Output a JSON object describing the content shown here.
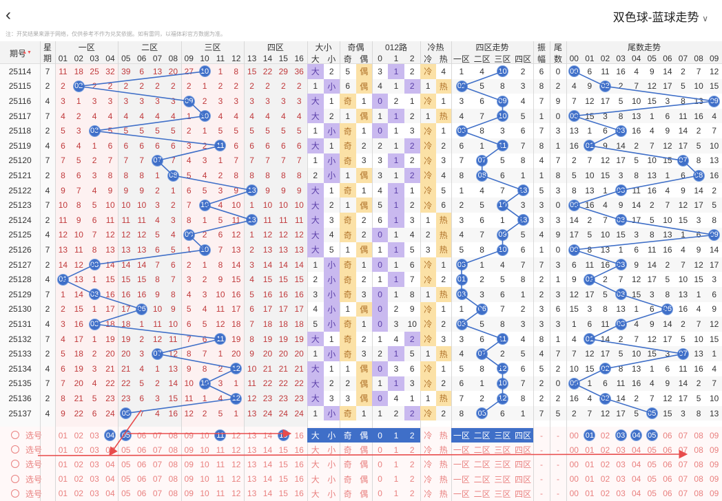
{
  "header": {
    "title": "双色球-蓝球走势"
  },
  "notice": "注：开奖结果来源于网络，仅供参考不作为兑奖依据。如有雷同，以福体彩官方数据为准。",
  "table_headers": {
    "period": "期号",
    "week": "星期",
    "zones": [
      "一区",
      "二区",
      "三区",
      "四区"
    ],
    "size": "大小",
    "parity": "奇偶",
    "route": "012路",
    "hotcold": "冷热",
    "zone_trend": "四区走势",
    "amplitude": "振幅",
    "tail_count": "尾数",
    "tail_trend": "尾数走势",
    "week_sub": "期",
    "amp_sub": "幅",
    "tail_sub": "数",
    "size_labels": [
      "大",
      "小"
    ],
    "parity_labels": [
      "奇",
      "偶"
    ],
    "route_labels": [
      "0",
      "1",
      "2"
    ],
    "hot_labels": [
      "冷",
      "热"
    ],
    "tail_digits": [
      "00",
      "01",
      "02",
      "03",
      "04",
      "05",
      "06",
      "07",
      "08",
      "09"
    ]
  },
  "draws": [
    {
      "period": "25114",
      "week": "7",
      "blue": 10,
      "size": "大",
      "parity": "偶",
      "route": 1,
      "hot": "冷",
      "amp": "6",
      "tail": "0",
      "sizeN": 2,
      "parityN": 5,
      "routeN": [
        3,
        2
      ],
      "hotN": 4
    },
    {
      "period": "25115",
      "week": "2",
      "blue": 2,
      "size": "小",
      "parity": "偶",
      "route": 2,
      "hot": "热",
      "amp": "8",
      "tail": "2",
      "sizeN": 1,
      "parityN": 6,
      "routeN": [
        4,
        1
      ],
      "hotN": 1
    },
    {
      "period": "25116",
      "week": "4",
      "blue": 9,
      "size": "大",
      "parity": "奇",
      "route": 0,
      "hot": "冷",
      "amp": "7",
      "tail": "9",
      "sizeN": 1,
      "parityN": 1,
      "routeN": [
        2,
        1
      ],
      "hotN": 1
    },
    {
      "period": "25117",
      "week": "7",
      "blue": 10,
      "size": "大",
      "parity": "偶",
      "route": 1,
      "hot": "热",
      "amp": "1",
      "tail": "0",
      "sizeN": 2,
      "parityN": 1,
      "routeN": [
        1,
        2
      ],
      "hotN": 1
    },
    {
      "period": "25118",
      "week": "2",
      "blue": 3,
      "size": "小",
      "parity": "奇",
      "route": 0,
      "hot": "冷",
      "amp": "7",
      "tail": "3",
      "sizeN": 1,
      "parityN": 1,
      "routeN": [
        1,
        3
      ],
      "hotN": 1
    },
    {
      "period": "25119",
      "week": "4",
      "blue": 11,
      "size": "大",
      "parity": "奇",
      "route": 2,
      "hot": "冷",
      "amp": "8",
      "tail": "1",
      "sizeN": 1,
      "parityN": 2,
      "routeN": [
        2,
        1
      ],
      "hotN": 2
    },
    {
      "period": "25120",
      "week": "7",
      "blue": 7,
      "size": "小",
      "parity": "奇",
      "route": 1,
      "hot": "冷",
      "amp": "4",
      "tail": "7",
      "sizeN": 1,
      "parityN": 3,
      "routeN": [
        3,
        2
      ],
      "hotN": 3
    },
    {
      "period": "25121",
      "week": "2",
      "blue": 8,
      "size": "小",
      "parity": "偶",
      "route": 2,
      "hot": "冷",
      "amp": "1",
      "tail": "8",
      "sizeN": 2,
      "parityN": 1,
      "routeN": [
        3,
        1
      ],
      "hotN": 4
    },
    {
      "period": "25122",
      "week": "4",
      "blue": 13,
      "size": "大",
      "parity": "奇",
      "route": 1,
      "hot": "冷",
      "amp": "5",
      "tail": "3",
      "sizeN": 1,
      "parityN": 1,
      "routeN": [
        4,
        1
      ],
      "hotN": 5
    },
    {
      "period": "25123",
      "week": "7",
      "blue": 10,
      "size": "大",
      "parity": "偶",
      "route": 1,
      "hot": "冷",
      "amp": "3",
      "tail": "0",
      "sizeN": 2,
      "parityN": 1,
      "routeN": [
        5,
        2
      ],
      "hotN": 6
    },
    {
      "period": "25124",
      "week": "2",
      "blue": 13,
      "size": "大",
      "parity": "奇",
      "route": 1,
      "hot": "热",
      "amp": "3",
      "tail": "3",
      "sizeN": 3,
      "parityN": 2,
      "routeN": [
        6,
        3
      ],
      "hotN": 1
    },
    {
      "period": "25125",
      "week": "4",
      "blue": 9,
      "size": "大",
      "parity": "奇",
      "route": 0,
      "hot": "热",
      "amp": "4",
      "tail": "9",
      "sizeN": 4,
      "parityN": 2,
      "routeN": [
        1,
        4
      ],
      "hotN": 2
    },
    {
      "period": "25126",
      "week": "7",
      "blue": 10,
      "size": "大",
      "parity": "偶",
      "route": 1,
      "hot": "热",
      "amp": "1",
      "tail": "0",
      "sizeN": 5,
      "parityN": 1,
      "routeN": [
        1,
        5
      ],
      "hotN": 3
    },
    {
      "period": "25127",
      "week": "2",
      "blue": 3,
      "size": "小",
      "parity": "奇",
      "route": 0,
      "hot": "冷",
      "amp": "7",
      "tail": "3",
      "sizeN": 1,
      "parityN": 1,
      "routeN": [
        1,
        6
      ],
      "hotN": 1
    },
    {
      "period": "25128",
      "week": "4",
      "blue": 1,
      "size": "小",
      "parity": "奇",
      "route": 1,
      "hot": "冷",
      "amp": "2",
      "tail": "1",
      "sizeN": 2,
      "parityN": 2,
      "routeN": [
        1,
        7
      ],
      "hotN": 2
    },
    {
      "period": "25129",
      "week": "7",
      "blue": 3,
      "size": "小",
      "parity": "奇",
      "route": 0,
      "hot": "热",
      "amp": "2",
      "tail": "3",
      "sizeN": 3,
      "parityN": 3,
      "routeN": [
        1,
        8
      ],
      "hotN": 1
    },
    {
      "period": "25130",
      "week": "2",
      "blue": 6,
      "size": "小",
      "parity": "偶",
      "route": 0,
      "hot": "冷",
      "amp": "3",
      "tail": "6",
      "sizeN": 4,
      "parityN": 1,
      "routeN": [
        2,
        9
      ],
      "hotN": 1
    },
    {
      "period": "25131",
      "week": "4",
      "blue": 3,
      "size": "小",
      "parity": "奇",
      "route": 0,
      "hot": "冷",
      "amp": "3",
      "tail": "3",
      "sizeN": 5,
      "parityN": 1,
      "routeN": [
        3,
        10
      ],
      "hotN": 2
    },
    {
      "period": "25132",
      "week": "7",
      "blue": 11,
      "size": "大",
      "parity": "奇",
      "route": 2,
      "hot": "冷",
      "amp": "8",
      "tail": "1",
      "sizeN": 1,
      "parityN": 2,
      "routeN": [
        1,
        4
      ],
      "hotN": 3
    },
    {
      "period": "25133",
      "week": "2",
      "blue": 7,
      "size": "小",
      "parity": "奇",
      "route": 1,
      "hot": "热",
      "amp": "4",
      "tail": "7",
      "sizeN": 1,
      "parityN": 3,
      "routeN": [
        2,
        5
      ],
      "hotN": 1
    },
    {
      "period": "25134",
      "week": "4",
      "blue": 12,
      "size": "大",
      "parity": "偶",
      "route": 0,
      "hot": "冷",
      "amp": "5",
      "tail": "2",
      "sizeN": 1,
      "parityN": 1,
      "routeN": [
        3,
        6
      ],
      "hotN": 1
    },
    {
      "period": "25135",
      "week": "7",
      "blue": 10,
      "size": "大",
      "parity": "偶",
      "route": 1,
      "hot": "冷",
      "amp": "2",
      "tail": "0",
      "sizeN": 2,
      "parityN": 2,
      "routeN": [
        1,
        3
      ],
      "hotN": 2
    },
    {
      "period": "25136",
      "week": "2",
      "blue": 12,
      "size": "大",
      "parity": "偶",
      "route": 0,
      "hot": "热",
      "amp": "2",
      "tail": "2",
      "sizeN": 3,
      "parityN": 3,
      "routeN": [
        4,
        1
      ],
      "hotN": 1
    },
    {
      "period": "25137",
      "week": "4",
      "blue": 5,
      "size": "小",
      "parity": "奇",
      "route": 2,
      "hot": "冷",
      "amp": "7",
      "tail": "5",
      "sizeN": 1,
      "parityN": 1,
      "routeN": [
        1,
        2
      ],
      "hotN": 2
    }
  ],
  "bottom": {
    "pick_label": "选号",
    "number_labels": [
      "01",
      "02",
      "03",
      "04",
      "05",
      "06",
      "07",
      "08",
      "09",
      "10",
      "11",
      "12",
      "13",
      "14",
      "15",
      "16"
    ],
    "selected_blue": [
      4,
      5,
      11,
      15
    ],
    "selected_tail": [
      1,
      3,
      4,
      5
    ],
    "zone_labels": [
      "一区",
      "二区",
      "三区",
      "四区"
    ],
    "dash": "-"
  },
  "colors": {
    "ball": "#3f6fc8",
    "miss": "#c0393b",
    "size_bg": "#c9b9ef",
    "parity_bg": "#fbe1a6",
    "route_bg": "#c9b9ef",
    "hot_bg": "#fbe1a6",
    "arrow": "#e84c4c",
    "pick_text": "#e9807f"
  }
}
